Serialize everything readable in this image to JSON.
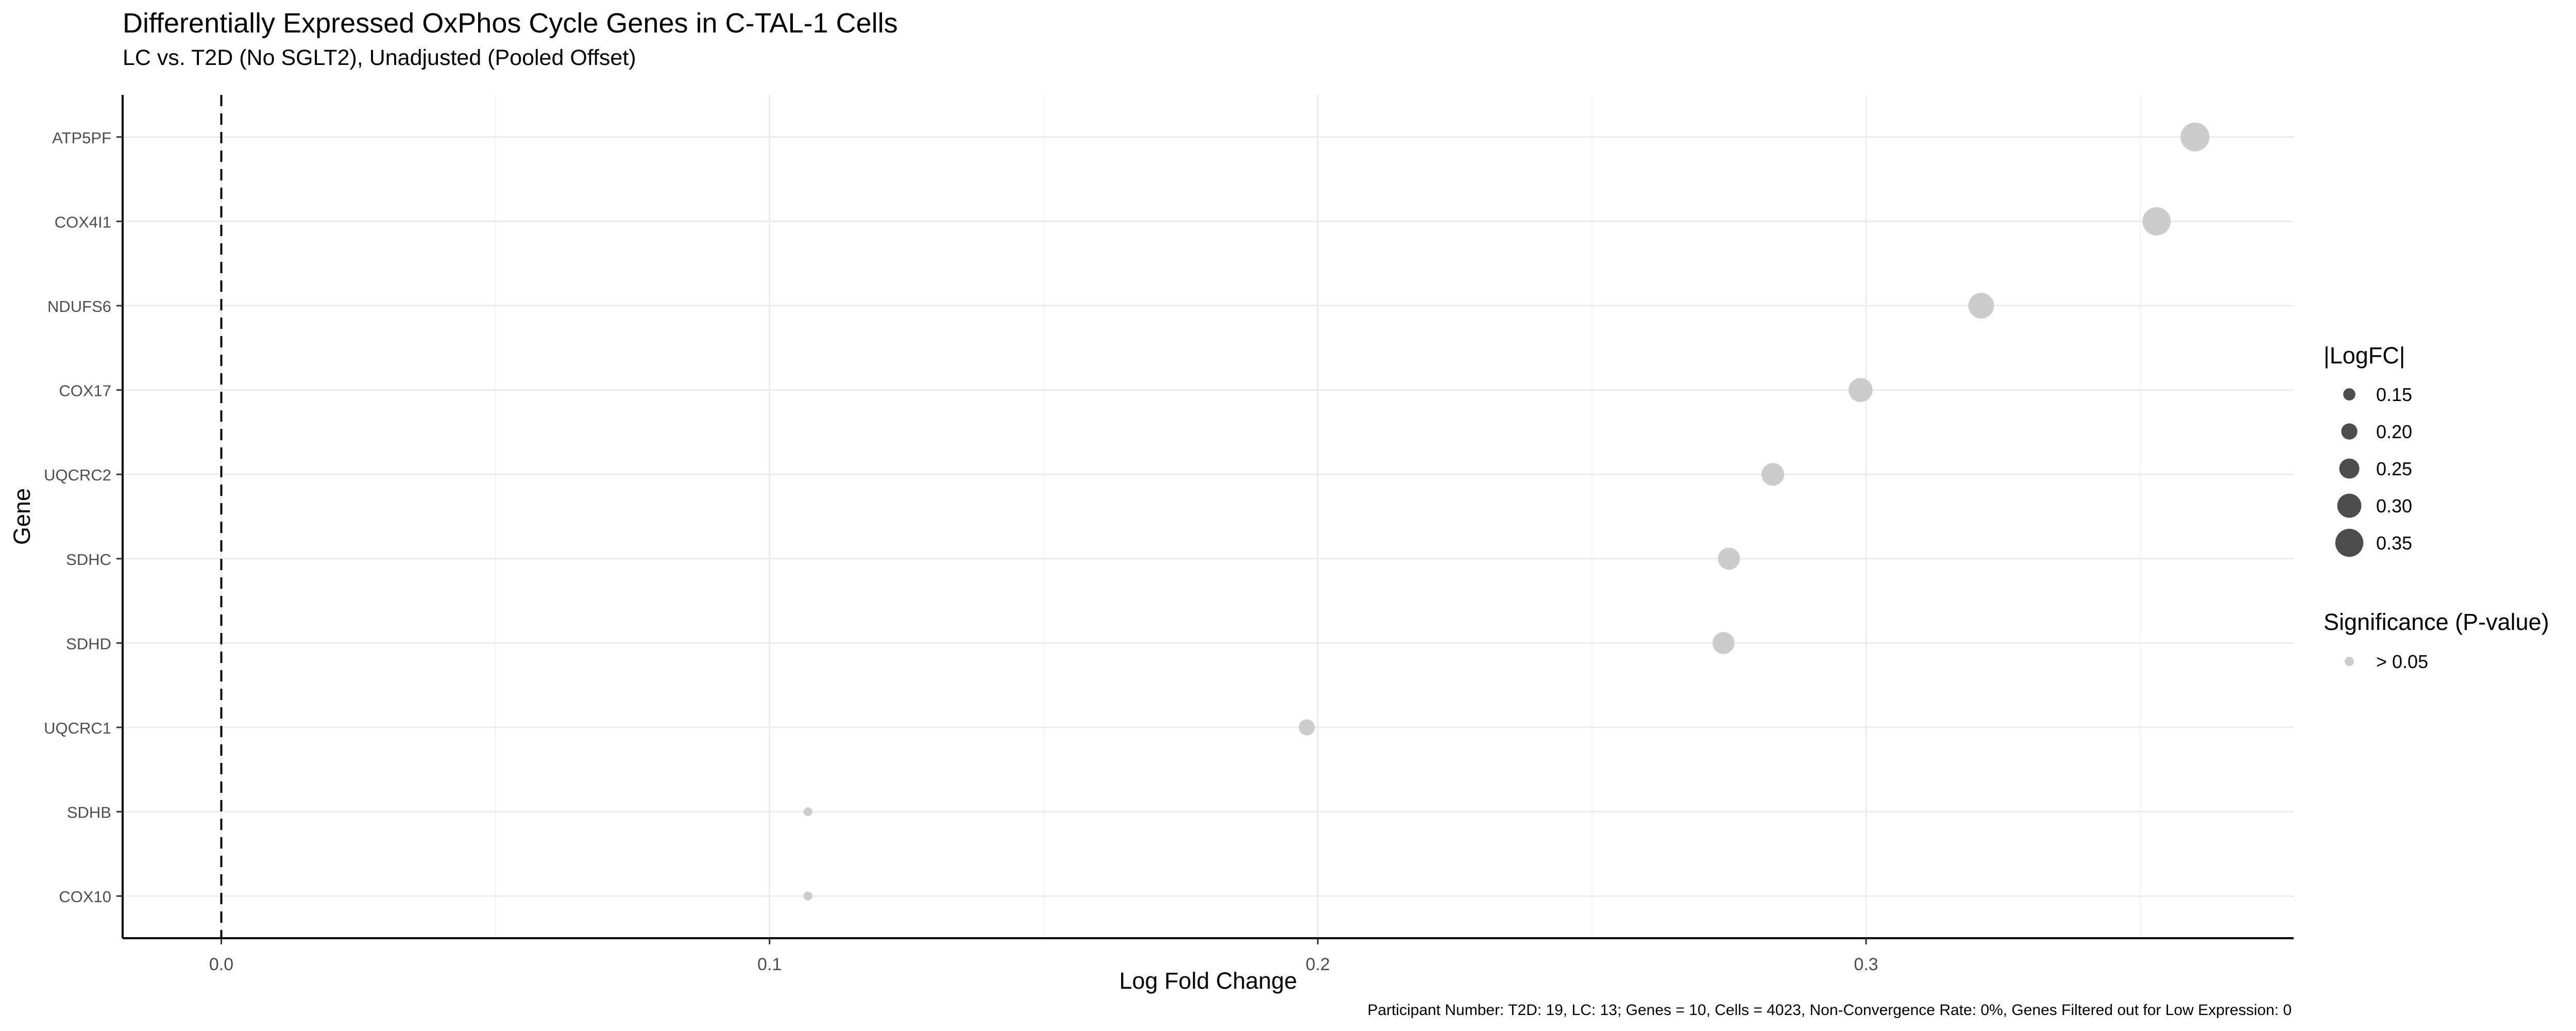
{
  "title": "Differentially Expressed OxPhos Cycle Genes in C-TAL-1 Cells",
  "subtitle": "LC vs. T2D (No SGLT2), Unadjusted (Pooled Offset)",
  "caption": "Participant Number: T2D: 19, LC: 13; Genes = 10, Cells = 4023, Non-Convergence Rate: 0%, Genes Filtered out for Low Expression: 0",
  "chart_data": {
    "type": "scatter",
    "xlabel": "Log Fold Change",
    "ylabel": "Gene",
    "xlim": [
      -0.018,
      0.378
    ],
    "x_ticks": [
      0.0,
      0.1,
      0.2,
      0.3
    ],
    "x_tick_labels": [
      "0.0",
      "0.1",
      "0.2",
      "0.3"
    ],
    "reference_line_x": 0,
    "genes": [
      "ATP5PF",
      "COX4I1",
      "NDUFS6",
      "COX17",
      "UQCRC2",
      "SDHC",
      "SDHD",
      "UQCRC1",
      "SDHB",
      "COX10"
    ],
    "x": [
      0.36,
      0.353,
      0.321,
      0.299,
      0.283,
      0.275,
      0.274,
      0.198,
      0.107,
      0.107
    ],
    "size_values": [
      0.36,
      0.353,
      0.321,
      0.299,
      0.283,
      0.275,
      0.274,
      0.198,
      0.107,
      0.107
    ],
    "significance": [
      "> 0.05",
      "> 0.05",
      "> 0.05",
      "> 0.05",
      "> 0.05",
      "> 0.05",
      "> 0.05",
      "> 0.05",
      "> 0.05",
      "> 0.05"
    ],
    "point_color": "#cccccc",
    "grid": true,
    "legends": [
      {
        "title": "|LogFC|",
        "type": "size",
        "keys": [
          0.15,
          0.2,
          0.25,
          0.3,
          0.35
        ],
        "labels": [
          "0.15",
          "0.20",
          "0.25",
          "0.30",
          "0.35"
        ],
        "color": "#4d4d4d"
      },
      {
        "title": "Significance (P-value)",
        "type": "color",
        "labels": [
          "> 0.05"
        ],
        "color": "#cccccc"
      }
    ],
    "legend_position": "right"
  }
}
